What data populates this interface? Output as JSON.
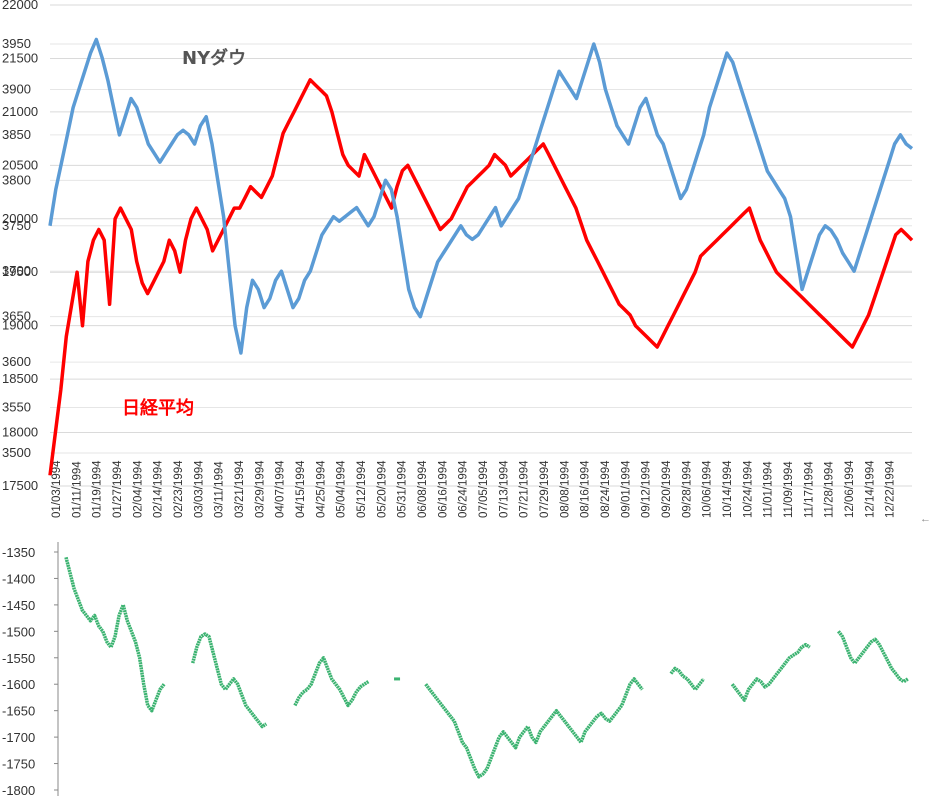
{
  "chart_data": [
    {
      "type": "line",
      "annotations": [
        {
          "text": "NYダウ",
          "color": "#555555"
        },
        {
          "text": "日経平均",
          "color": "#ff0000"
        }
      ],
      "left_axis_ticks": [
        "22000",
        "21500",
        "21000",
        "20500",
        "20000",
        "19500",
        "19000",
        "18500",
        "18000",
        "17500"
      ],
      "right_axis_ticks": [
        "3950",
        "3900",
        "3850",
        "3800",
        "3750",
        "3700",
        "3650",
        "3600",
        "3550",
        "3500"
      ],
      "left_ylim": [
        17500,
        22000
      ],
      "right_ylim": [
        3500,
        3950
      ],
      "x_tick_labels": [
        "01/03/1994",
        "01/11/1994",
        "01/19/1994",
        "01/27/1994",
        "02/04/1994",
        "02/14/1994",
        "02/23/1994",
        "03/03/1994",
        "03/11/1994",
        "03/21/1994",
        "03/29/1994",
        "04/07/1994",
        "04/15/1994",
        "04/25/1994",
        "05/04/1994",
        "05/12/1994",
        "05/20/1994",
        "05/31/1994",
        "06/08/1994",
        "06/16/1994",
        "06/24/1994",
        "07/05/1994",
        "07/13/1994",
        "07/21/1994",
        "07/29/1994",
        "08/08/1994",
        "08/16/1994",
        "08/24/1994",
        "09/01/1994",
        "09/12/1994",
        "09/20/1994",
        "09/28/1994",
        "10/06/1994",
        "10/14/1994",
        "10/24/1994",
        "11/01/1994",
        "11/09/1994",
        "11/17/1994",
        "11/28/1994",
        "12/06/1994",
        "12/14/1994",
        "12/22/1994"
      ],
      "series": [
        {
          "name": "日経平均",
          "color": "#ff0000",
          "axis": "left",
          "values": [
            17600,
            18000,
            18400,
            18900,
            19200,
            19500,
            19000,
            19600,
            19800,
            19900,
            19800,
            19200,
            20000,
            20100,
            20000,
            19900,
            19600,
            19400,
            19300,
            19400,
            19500,
            19600,
            19800,
            19700,
            19500,
            19800,
            20000,
            20100,
            20000,
            19900,
            19700,
            19800,
            19900,
            20000,
            20100,
            20100,
            20200,
            20300,
            20250,
            20200,
            20300,
            20400,
            20600,
            20800,
            20900,
            21000,
            21100,
            21200,
            21300,
            21250,
            21200,
            21150,
            21000,
            20800,
            20600,
            20500,
            20450,
            20400,
            20600,
            20500,
            20400,
            20300,
            20200,
            20100,
            20300,
            20450,
            20500,
            20400,
            20300,
            20200,
            20100,
            20000,
            19900,
            19950,
            20000,
            20100,
            20200,
            20300,
            20350,
            20400,
            20450,
            20500,
            20600,
            20550,
            20500,
            20400,
            20450,
            20500,
            20550,
            20600,
            20650,
            20700,
            20600,
            20500,
            20400,
            20300,
            20200,
            20100,
            19950,
            19800,
            19700,
            19600,
            19500,
            19400,
            19300,
            19200,
            19150,
            19100,
            19000,
            18950,
            18900,
            18850,
            18800,
            18900,
            19000,
            19100,
            19200,
            19300,
            19400,
            19500,
            19650,
            19700,
            19750,
            19800,
            19850,
            19900,
            19950,
            20000,
            20050,
            20100,
            19950,
            19800,
            19700,
            19600,
            19500,
            19450,
            19400,
            19350,
            19300,
            19250,
            19200,
            19150,
            19100,
            19050,
            19000,
            18950,
            18900,
            18850,
            18800,
            18900,
            19000,
            19100,
            19250,
            19400,
            19550,
            19700,
            19850,
            19900,
            19850,
            19800
          ]
        },
        {
          "name": "NYダウ",
          "color": "#5b9bd5",
          "axis": "right",
          "values": [
            3750,
            3790,
            3820,
            3850,
            3880,
            3900,
            3920,
            3940,
            3955,
            3935,
            3910,
            3880,
            3850,
            3870,
            3890,
            3880,
            3860,
            3840,
            3830,
            3820,
            3830,
            3840,
            3850,
            3855,
            3850,
            3840,
            3860,
            3870,
            3840,
            3800,
            3760,
            3700,
            3640,
            3610,
            3660,
            3690,
            3680,
            3660,
            3670,
            3690,
            3700,
            3680,
            3660,
            3670,
            3690,
            3700,
            3720,
            3740,
            3750,
            3760,
            3755,
            3760,
            3765,
            3770,
            3760,
            3750,
            3760,
            3780,
            3800,
            3790,
            3760,
            3720,
            3680,
            3660,
            3650,
            3670,
            3690,
            3710,
            3720,
            3730,
            3740,
            3750,
            3740,
            3735,
            3740,
            3750,
            3760,
            3770,
            3750,
            3760,
            3770,
            3780,
            3800,
            3820,
            3840,
            3860,
            3880,
            3900,
            3920,
            3910,
            3900,
            3890,
            3910,
            3930,
            3950,
            3930,
            3900,
            3880,
            3860,
            3850,
            3840,
            3860,
            3880,
            3890,
            3870,
            3850,
            3840,
            3820,
            3800,
            3780,
            3790,
            3810,
            3830,
            3850,
            3880,
            3900,
            3920,
            3940,
            3930,
            3910,
            3890,
            3870,
            3850,
            3830,
            3810,
            3800,
            3790,
            3780,
            3760,
            3720,
            3680,
            3700,
            3720,
            3740,
            3750,
            3745,
            3735,
            3720,
            3710,
            3700,
            3720,
            3740,
            3760,
            3780,
            3800,
            3820,
            3840,
            3850,
            3840,
            3835
          ]
        }
      ]
    },
    {
      "type": "line",
      "y_axis_ticks": [
        "-1350",
        "-1400",
        "-1450",
        "-1500",
        "-1550",
        "-1600",
        "-1650",
        "-1700",
        "-1750",
        "-1800"
      ],
      "ylim": [
        -1800,
        -1350
      ],
      "series": [
        {
          "color": "#3cb371",
          "segments": [
            [
              -1360,
              -1390,
              -1420,
              -1440,
              -1460,
              -1470,
              -1480,
              -1470,
              -1490,
              -1500,
              -1520,
              -1530,
              -1510,
              -1470,
              -1450,
              -1480,
              -1500,
              -1520,
              -1550,
              -1600,
              -1640,
              -1650,
              -1630,
              -1610,
              -1600
            ],
            [
              -1560,
              -1530,
              -1510,
              -1505,
              -1510,
              -1540,
              -1570,
              -1600,
              -1610,
              -1600,
              -1590,
              -1600,
              -1620,
              -1640,
              -1650,
              -1660,
              -1670,
              -1680,
              -1675
            ],
            [
              -1640,
              -1625,
              -1615,
              -1610,
              -1600,
              -1580,
              -1560,
              -1550,
              -1570,
              -1590,
              -1600,
              -1610,
              -1625,
              -1640,
              -1630,
              -1615,
              -1605,
              -1600,
              -1595
            ],
            [
              -1590
            ],
            [
              -1600,
              -1610,
              -1620,
              -1630,
              -1640,
              -1650,
              -1660,
              -1670,
              -1690,
              -1710,
              -1720,
              -1740,
              -1760,
              -1775,
              -1770,
              -1760,
              -1740,
              -1720,
              -1700,
              -1690,
              -1700,
              -1710,
              -1720,
              -1700,
              -1690,
              -1680,
              -1700,
              -1710,
              -1690,
              -1680,
              -1670,
              -1660,
              -1650,
              -1660,
              -1670,
              -1680,
              -1690,
              -1700,
              -1710,
              -1690,
              -1680,
              -1670,
              -1660,
              -1655,
              -1665,
              -1670,
              -1660,
              -1650,
              -1640,
              -1620,
              -1600,
              -1590,
              -1600,
              -1610
            ],
            [
              -1580,
              -1570,
              -1575,
              -1585,
              -1590,
              -1600,
              -1610,
              -1600,
              -1590
            ],
            [
              -1600,
              -1610,
              -1620,
              -1630,
              -1610,
              -1600,
              -1590,
              -1595,
              -1605,
              -1600,
              -1590,
              -1580,
              -1570,
              -1560,
              -1550,
              -1545,
              -1540,
              -1530,
              -1525,
              -1530
            ],
            [
              -1500,
              -1510,
              -1530,
              -1550,
              -1560,
              -1550,
              -1540,
              -1530,
              -1520,
              -1515,
              -1525,
              -1540,
              -1555,
              -1570,
              -1580,
              -1590,
              -1595,
              -1590
            ]
          ]
        }
      ]
    }
  ]
}
